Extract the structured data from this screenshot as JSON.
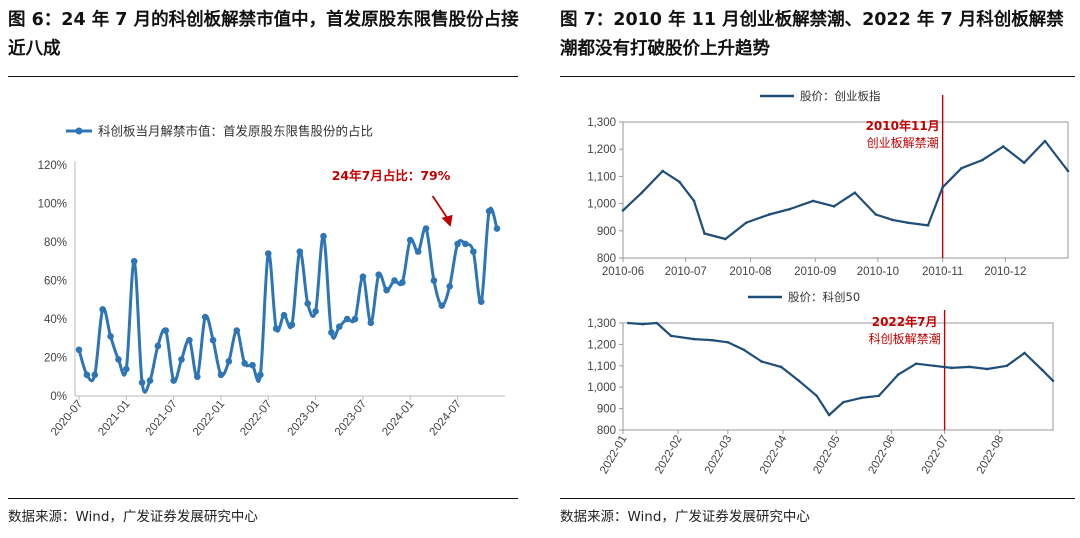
{
  "left_panel": {
    "title": "图 6：24 年 7 月的科创板解禁市值中，首发原股东限售股份占接近八成",
    "source": "数据来源：Wind，广发证券发展研究中心"
  },
  "right_panel": {
    "title": "图 7：2010 年 11 月创业板解禁潮、2022 年 7 月科创板解禁潮都没有打破股价上升趋势",
    "source": "数据来源：Wind，广发证券发展研究中心"
  },
  "colors": {
    "line": "#2e75b6",
    "line_right": "#1f4e79",
    "annotation": "#c00000"
  },
  "chart_data": [
    {
      "type": "line",
      "legend": "科创板当月解禁市值：首发原股东限售股份的占比",
      "x_tick_labels": [
        "2020-07",
        "2021-01",
        "2021-07",
        "2022-01",
        "2022-07",
        "2023-01",
        "2023-07",
        "2024-01",
        "2024-07"
      ],
      "y_tick_labels": [
        "0%",
        "20%",
        "40%",
        "60%",
        "80%",
        "100%",
        "120%"
      ],
      "ylim": [
        0,
        120
      ],
      "y_unit": "%",
      "annotation": "24年7月占比：79%",
      "x": [
        "2020-07",
        "2020-08",
        "2020-09",
        "2020-10",
        "2020-11",
        "2020-12",
        "2021-01",
        "2021-02",
        "2021-03",
        "2021-04",
        "2021-05",
        "2021-06",
        "2021-07",
        "2021-08",
        "2021-09",
        "2021-10",
        "2021-11",
        "2021-12",
        "2022-01",
        "2022-02",
        "2022-03",
        "2022-04",
        "2022-05",
        "2022-06",
        "2022-07",
        "2022-08",
        "2022-09",
        "2022-10",
        "2022-11",
        "2022-12",
        "2023-01",
        "2023-02",
        "2023-03",
        "2023-04",
        "2023-05",
        "2023-06",
        "2023-07",
        "2023-08",
        "2023-09",
        "2023-10",
        "2023-11",
        "2023-12",
        "2024-01",
        "2024-02",
        "2024-03",
        "2024-04",
        "2024-05",
        "2024-06",
        "2024-07",
        "2024-08",
        "2024-09",
        "2024-10",
        "2024-11",
        "2024-12"
      ],
      "values": [
        24,
        11,
        11,
        45,
        31,
        19,
        14,
        70,
        7,
        8,
        26,
        34,
        8,
        19,
        29,
        10,
        41,
        29,
        11,
        18,
        34,
        17,
        16,
        11,
        74,
        35,
        42,
        37,
        75,
        48,
        44,
        83,
        33,
        36,
        40,
        40,
        62,
        38,
        63,
        55,
        60,
        59,
        81,
        75,
        87,
        60,
        47,
        57,
        79,
        79,
        75,
        49,
        96,
        87
      ]
    },
    {
      "type": "line",
      "legend": "股价：创业板指",
      "x_tick_labels": [
        "2010-06",
        "2010-07",
        "2010-08",
        "2010-09",
        "2010-10",
        "2010-11",
        "2010-12"
      ],
      "y_tick_labels": [
        "800",
        "900",
        "1,000",
        "1,100",
        "1,200",
        "1,300"
      ],
      "ylim": [
        800,
        1300
      ],
      "marker_label": "2010年11月",
      "marker_sublabel": "创业板解禁潮",
      "x": [
        "2010-06-01",
        "2010-06-10",
        "2010-06-20",
        "2010-06-28",
        "2010-07-05",
        "2010-07-10",
        "2010-07-20",
        "2010-07-30",
        "2010-08-10",
        "2010-08-20",
        "2010-08-31",
        "2010-09-10",
        "2010-09-20",
        "2010-09-30",
        "2010-10-08",
        "2010-10-15",
        "2010-10-25",
        "2010-11-01",
        "2010-11-10",
        "2010-11-20",
        "2010-11-30",
        "2010-12-10",
        "2010-12-20",
        "2010-12-31"
      ],
      "values": [
        975,
        1040,
        1120,
        1080,
        1010,
        890,
        870,
        930,
        960,
        980,
        1010,
        990,
        1040,
        960,
        940,
        930,
        920,
        1060,
        1130,
        1160,
        1210,
        1150,
        1230,
        1120
      ]
    },
    {
      "type": "line",
      "legend": "股价：科创50",
      "x_tick_labels": [
        "2022-01",
        "2022-02",
        "2022-03",
        "2022-04",
        "2022-05",
        "2022-06",
        "2022-07",
        "2022-08"
      ],
      "y_tick_labels": [
        "800",
        "900",
        "1,000",
        "1,100",
        "1,200",
        "1,300"
      ],
      "ylim": [
        800,
        1300
      ],
      "marker_label": "2022年7月",
      "marker_sublabel": "科创板解禁潮",
      "x": [
        "2022-01-04",
        "2022-01-12",
        "2022-01-20",
        "2022-01-28",
        "2022-02-10",
        "2022-02-20",
        "2022-03-01",
        "2022-03-10",
        "2022-03-20",
        "2022-03-31",
        "2022-04-10",
        "2022-04-20",
        "2022-04-27",
        "2022-05-05",
        "2022-05-15",
        "2022-05-25",
        "2022-06-05",
        "2022-06-15",
        "2022-06-25",
        "2022-07-05",
        "2022-07-15",
        "2022-07-25",
        "2022-08-05",
        "2022-08-15",
        "2022-08-25",
        "2022-08-31"
      ],
      "values": [
        1300,
        1295,
        1300,
        1240,
        1225,
        1220,
        1210,
        1175,
        1120,
        1095,
        1030,
        960,
        870,
        930,
        950,
        960,
        1060,
        1110,
        1100,
        1090,
        1095,
        1085,
        1100,
        1160,
        1080,
        1030
      ]
    }
  ]
}
